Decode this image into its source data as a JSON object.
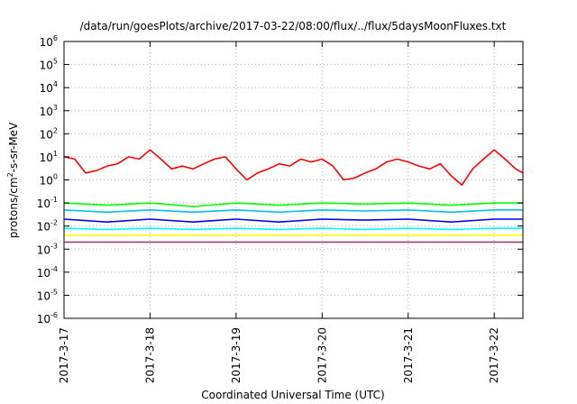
{
  "chart_data": {
    "type": "line",
    "title": "/data/run/goesPlots/archive/2017-03-22/08:00/flux/../flux/5daysMoonFluxes.txt",
    "xlabel": "Coordinated Universal Time (UTC)",
    "ylabel": {
      "prefix": "protons/cm",
      "sup": "2",
      "suffix": "-s-sr-MeV"
    },
    "y_scale": "log",
    "ylim": [
      1e-06,
      1000000.0
    ],
    "y_ticks": [
      {
        "base": "10",
        "exp": "-6",
        "value": 1e-06
      },
      {
        "base": "10",
        "exp": "-5",
        "value": 1e-05
      },
      {
        "base": "10",
        "exp": "-4",
        "value": 0.0001
      },
      {
        "base": "10",
        "exp": "-3",
        "value": 0.001
      },
      {
        "base": "10",
        "exp": "-2",
        "value": 0.01
      },
      {
        "base": "10",
        "exp": "-1",
        "value": 0.1
      },
      {
        "base": "10",
        "exp": "0",
        "value": 1
      },
      {
        "base": "10",
        "exp": "1",
        "value": 10
      },
      {
        "base": "10",
        "exp": "2",
        "value": 100
      },
      {
        "base": "10",
        "exp": "3",
        "value": 1000
      },
      {
        "base": "10",
        "exp": "4",
        "value": 10000
      },
      {
        "base": "10",
        "exp": "5",
        "value": 100000
      },
      {
        "base": "10",
        "exp": "6",
        "value": 1000000
      }
    ],
    "x_ticks": [
      "2017-3-17",
      "2017-3-18",
      "2017-3-19",
      "2017-3-20",
      "2017-3-21",
      "2017-3-22"
    ],
    "xlim": [
      "2017-03-17T00:00",
      "2017-03-22T08:00"
    ],
    "grid": true,
    "legend": "none",
    "series": [
      {
        "color": "#ff0000",
        "x": [
          "2017-03-17T00:00",
          "2017-03-17T03:00",
          "2017-03-17T06:00",
          "2017-03-17T09:00",
          "2017-03-17T12:00",
          "2017-03-17T15:00",
          "2017-03-17T18:00",
          "2017-03-17T21:00",
          "2017-03-18T00:00",
          "2017-03-18T03:00",
          "2017-03-18T06:00",
          "2017-03-18T09:00",
          "2017-03-18T12:00",
          "2017-03-18T15:00",
          "2017-03-18T18:00",
          "2017-03-18T21:00",
          "2017-03-19T00:00",
          "2017-03-19T03:00",
          "2017-03-19T06:00",
          "2017-03-19T09:00",
          "2017-03-19T12:00",
          "2017-03-19T15:00",
          "2017-03-19T18:00",
          "2017-03-19T21:00",
          "2017-03-20T00:00",
          "2017-03-20T03:00",
          "2017-03-20T06:00",
          "2017-03-20T09:00",
          "2017-03-20T12:00",
          "2017-03-20T15:00",
          "2017-03-20T18:00",
          "2017-03-20T21:00",
          "2017-03-21T00:00",
          "2017-03-21T03:00",
          "2017-03-21T06:00",
          "2017-03-21T09:00",
          "2017-03-21T12:00",
          "2017-03-21T15:00",
          "2017-03-21T18:00",
          "2017-03-21T21:00",
          "2017-03-22T00:00",
          "2017-03-22T03:00",
          "2017-03-22T06:00",
          "2017-03-22T08:00"
        ],
        "values": [
          10,
          8,
          2,
          2.5,
          4,
          5,
          10,
          8,
          20,
          8,
          3,
          4,
          3,
          5,
          8,
          10,
          3,
          1,
          2,
          3,
          5,
          4,
          8,
          6,
          8,
          4,
          1,
          1.2,
          2,
          3,
          6,
          8,
          6,
          4,
          3,
          5,
          1.5,
          0.6,
          3,
          8,
          20,
          8,
          3,
          2
        ]
      },
      {
        "color": "#00ff00",
        "x": [
          "2017-03-17T00:00",
          "2017-03-17T12:00",
          "2017-03-18T00:00",
          "2017-03-18T12:00",
          "2017-03-19T00:00",
          "2017-03-19T12:00",
          "2017-03-20T00:00",
          "2017-03-20T12:00",
          "2017-03-21T00:00",
          "2017-03-21T12:00",
          "2017-03-22T00:00",
          "2017-03-22T08:00"
        ],
        "values": [
          0.1,
          0.08,
          0.1,
          0.07,
          0.1,
          0.08,
          0.1,
          0.09,
          0.1,
          0.08,
          0.1,
          0.1
        ]
      },
      {
        "color": "#00bfff",
        "x": [
          "2017-03-17T00:00",
          "2017-03-17T12:00",
          "2017-03-18T00:00",
          "2017-03-18T12:00",
          "2017-03-19T00:00",
          "2017-03-19T12:00",
          "2017-03-20T00:00",
          "2017-03-20T12:00",
          "2017-03-21T00:00",
          "2017-03-21T12:00",
          "2017-03-22T00:00",
          "2017-03-22T08:00"
        ],
        "values": [
          0.05,
          0.04,
          0.05,
          0.04,
          0.05,
          0.04,
          0.05,
          0.045,
          0.05,
          0.04,
          0.05,
          0.05
        ]
      },
      {
        "color": "#0000ff",
        "x": [
          "2017-03-17T00:00",
          "2017-03-17T12:00",
          "2017-03-18T00:00",
          "2017-03-18T12:00",
          "2017-03-19T00:00",
          "2017-03-19T12:00",
          "2017-03-20T00:00",
          "2017-03-20T12:00",
          "2017-03-21T00:00",
          "2017-03-21T12:00",
          "2017-03-22T00:00",
          "2017-03-22T08:00"
        ],
        "values": [
          0.02,
          0.015,
          0.02,
          0.015,
          0.02,
          0.015,
          0.02,
          0.018,
          0.02,
          0.015,
          0.02,
          0.02
        ]
      },
      {
        "color": "#00ffff",
        "x": [
          "2017-03-17T00:00",
          "2017-03-17T12:00",
          "2017-03-18T00:00",
          "2017-03-18T12:00",
          "2017-03-19T00:00",
          "2017-03-19T12:00",
          "2017-03-20T00:00",
          "2017-03-20T12:00",
          "2017-03-21T00:00",
          "2017-03-21T12:00",
          "2017-03-22T00:00",
          "2017-03-22T08:00"
        ],
        "values": [
          0.008,
          0.007,
          0.008,
          0.007,
          0.008,
          0.007,
          0.008,
          0.007,
          0.008,
          0.007,
          0.008,
          0.008
        ]
      },
      {
        "color": "#ffff00",
        "x": [
          "2017-03-17T00:00",
          "2017-03-17T12:00",
          "2017-03-18T00:00",
          "2017-03-18T12:00",
          "2017-03-19T00:00",
          "2017-03-19T12:00",
          "2017-03-20T00:00",
          "2017-03-20T12:00",
          "2017-03-21T00:00",
          "2017-03-21T12:00",
          "2017-03-22T00:00",
          "2017-03-22T08:00"
        ],
        "values": [
          0.004,
          0.004,
          0.004,
          0.004,
          0.004,
          0.004,
          0.004,
          0.004,
          0.004,
          0.004,
          0.004,
          0.004
        ]
      },
      {
        "color": "#993366",
        "x": [
          "2017-03-17T00:00",
          "2017-03-17T12:00",
          "2017-03-18T00:00",
          "2017-03-18T12:00",
          "2017-03-19T00:00",
          "2017-03-19T12:00",
          "2017-03-20T00:00",
          "2017-03-20T12:00",
          "2017-03-21T00:00",
          "2017-03-21T12:00",
          "2017-03-22T00:00",
          "2017-03-22T08:00"
        ],
        "values": [
          0.002,
          0.002,
          0.002,
          0.002,
          0.002,
          0.002,
          0.002,
          0.002,
          0.002,
          0.002,
          0.002,
          0.002
        ]
      }
    ]
  }
}
